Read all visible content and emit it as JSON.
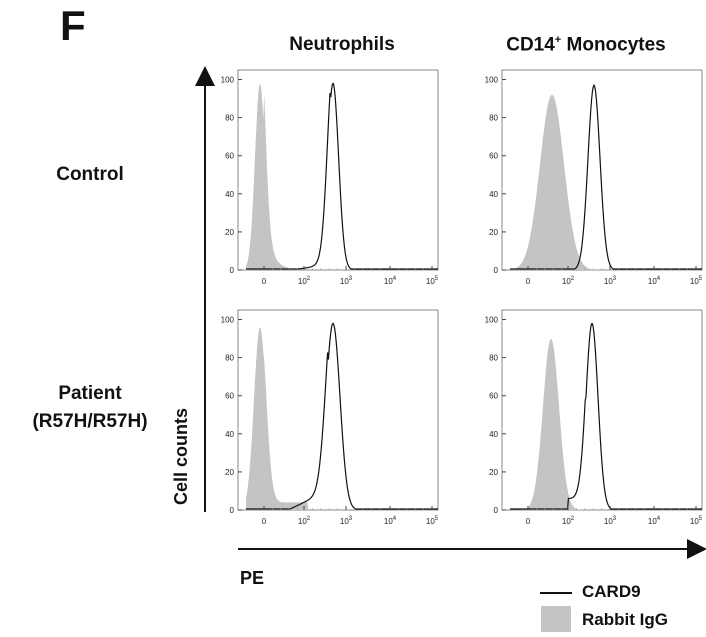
{
  "panel_letter": "F",
  "chart_data": [
    {
      "type": "histogram",
      "column_title": "Neutrophils",
      "row_label": "Control",
      "yticks": [
        0,
        20,
        40,
        60,
        80,
        100
      ],
      "xticks": [
        "0",
        "10^2",
        "10^3",
        "10^4",
        "10^5"
      ],
      "series": [
        {
          "name": "CARD9",
          "style": "line",
          "peak_x": "~10^3",
          "peak_y": 98
        },
        {
          "name": "Rabbit IgG",
          "style": "filled-gray",
          "peak_x": "~0",
          "peak_y": 98
        }
      ]
    },
    {
      "type": "histogram",
      "column_title": "CD14+ Monocytes",
      "row_label": "Control",
      "yticks": [
        0,
        20,
        40,
        60,
        80,
        100
      ],
      "xticks": [
        "0",
        "10^2",
        "10^3",
        "10^4",
        "10^5"
      ],
      "series": [
        {
          "name": "CARD9",
          "style": "line",
          "peak_x": "~3x10^2",
          "peak_y": 97
        },
        {
          "name": "Rabbit IgG",
          "style": "filled-gray",
          "peak_x": "~50",
          "peak_y": 92
        }
      ]
    },
    {
      "type": "histogram",
      "column_title": "Neutrophils",
      "row_label": "Patient (R57H/R57H)",
      "yticks": [
        0,
        20,
        40,
        60,
        80,
        100
      ],
      "xticks": [
        "0",
        "10^2",
        "10^3",
        "10^4",
        "10^5"
      ],
      "series": [
        {
          "name": "CARD9",
          "style": "line",
          "peak_x": "~10^3",
          "peak_y": 98
        },
        {
          "name": "Rabbit IgG",
          "style": "filled-gray",
          "peak_x": "~0",
          "peak_y": 96
        }
      ]
    },
    {
      "type": "histogram",
      "column_title": "CD14+ Monocytes",
      "row_label": "Patient (R57H/R57H)",
      "yticks": [
        0,
        20,
        40,
        60,
        80,
        100
      ],
      "xticks": [
        "0",
        "10^2",
        "10^3",
        "10^4",
        "10^5"
      ],
      "series": [
        {
          "name": "CARD9",
          "style": "line",
          "peak_x": "~3x10^2",
          "peak_y": 98
        },
        {
          "name": "Rabbit IgG",
          "style": "filled-gray",
          "peak_x": "~50",
          "peak_y": 90
        }
      ]
    }
  ],
  "titles": {
    "col1": "Neutrophils",
    "col2_main": "CD14",
    "col2_sup": "+",
    "col2_rest": " Monocytes"
  },
  "rows": {
    "row1": "Control",
    "row2_line1": "Patient",
    "row2_line2": "(R57H/R57H)"
  },
  "axes": {
    "ylabel": "Cell counts",
    "xlabel": "PE"
  },
  "legend": {
    "card9": "CARD9",
    "igg": "Rabbit IgG"
  },
  "colors": {
    "fill": "#c4c4c4",
    "line": "#111111",
    "frame": "#888888"
  }
}
